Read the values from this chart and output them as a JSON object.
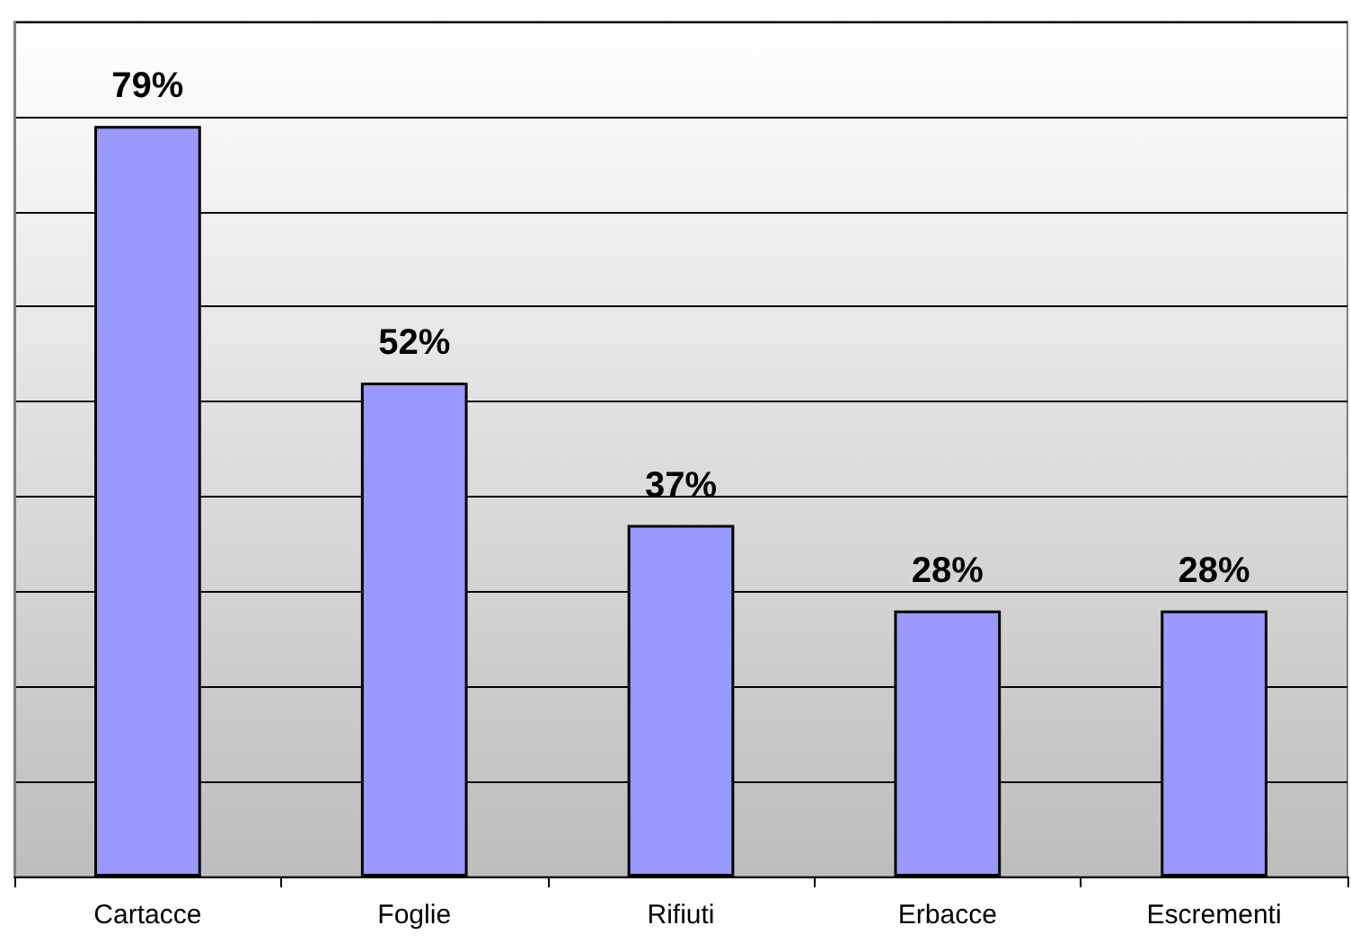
{
  "chart_data": {
    "type": "bar",
    "categories": [
      "Cartacce",
      "Foglie",
      "Rifiuti",
      "Erbacce",
      "Escrementi"
    ],
    "values": [
      79,
      52,
      37,
      28,
      28
    ],
    "value_labels": [
      "79%",
      "52%",
      "37%",
      "28%",
      "28%"
    ],
    "color": "#9999ff",
    "ylim": [
      0,
      90
    ],
    "yticks": [
      {
        "value": 0,
        "label": null
      },
      {
        "value": 10,
        "label": null
      },
      {
        "value": 20,
        "label": null
      },
      {
        "value": 30,
        "label": null
      },
      {
        "value": 40,
        "label": null
      },
      {
        "value": 50,
        "label": null
      },
      {
        "value": 60,
        "label": null
      },
      {
        "value": 70,
        "label": null
      },
      {
        "value": 80,
        "label": null
      },
      {
        "value": 90,
        "label": null
      }
    ],
    "grid": "y",
    "tick_labels": "x"
  }
}
